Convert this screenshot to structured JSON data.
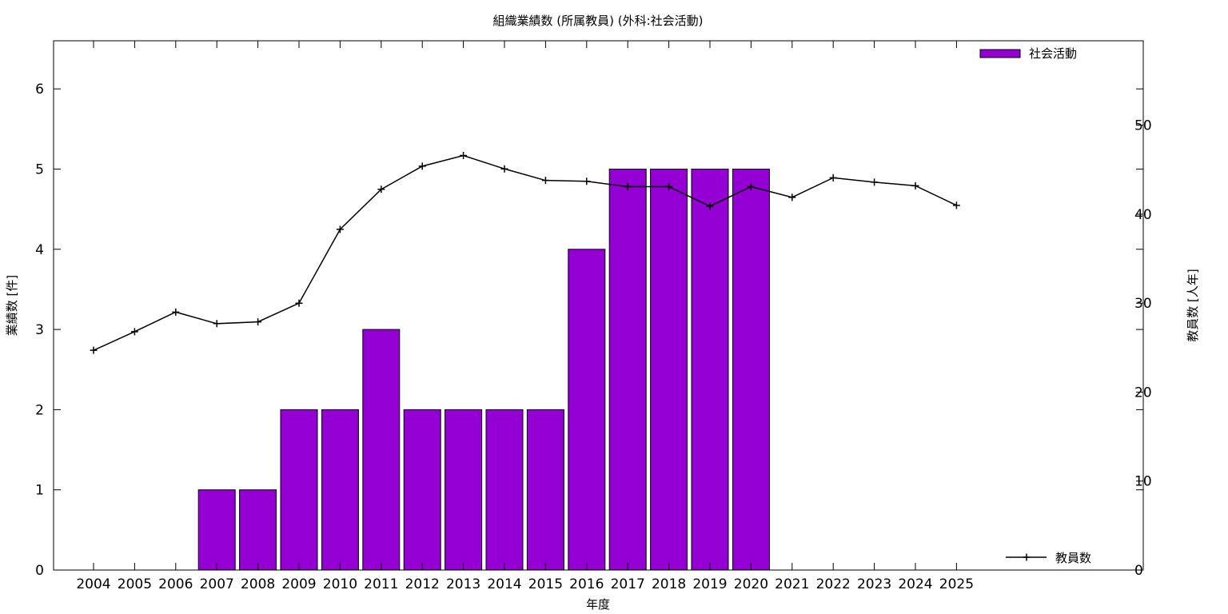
{
  "chart_data": {
    "type": "bar",
    "title": "組織業績数 (所属教員) (外科:社会活動)",
    "xlabel": "年度",
    "ylabel": "業績数 [件]",
    "y2label": "教員数 [人年]",
    "categories": [
      "2004",
      "2005",
      "2006",
      "2007",
      "2008",
      "2009",
      "2010",
      "2011",
      "2012",
      "2013",
      "2014",
      "2015",
      "2016",
      "2017",
      "2018",
      "2019",
      "2020",
      "2021",
      "2022",
      "2023",
      "2024",
      "2025"
    ],
    "ylim": [
      0,
      6.6
    ],
    "yticks": [
      0,
      1,
      2,
      3,
      4,
      5,
      6
    ],
    "y2lim": [
      0,
      59.5
    ],
    "y2ticks": [
      0,
      10,
      20,
      30,
      40,
      50
    ],
    "grid": false,
    "series": [
      {
        "name": "社会活動",
        "type": "bar",
        "axis": "left",
        "color": "#9400d3",
        "values": [
          0,
          0,
          0,
          1,
          1,
          2,
          2,
          3,
          2,
          2,
          2,
          2,
          4,
          5,
          5,
          5,
          5,
          0,
          0,
          0,
          0,
          0
        ]
      },
      {
        "name": "教員数",
        "type": "line",
        "axis": "right",
        "color": "#000000",
        "marker": "plus",
        "values": [
          24.7,
          26.8,
          29.0,
          27.7,
          27.9,
          30.0,
          38.3,
          42.8,
          45.4,
          46.6,
          45.1,
          43.8,
          43.7,
          43.1,
          43.1,
          40.9,
          43.1,
          41.9,
          44.1,
          43.6,
          43.2,
          41.0
        ]
      }
    ],
    "legend": [
      {
        "label": "社会活動",
        "placement": "top-right"
      },
      {
        "label": "教員数",
        "placement": "bottom-right"
      }
    ]
  }
}
